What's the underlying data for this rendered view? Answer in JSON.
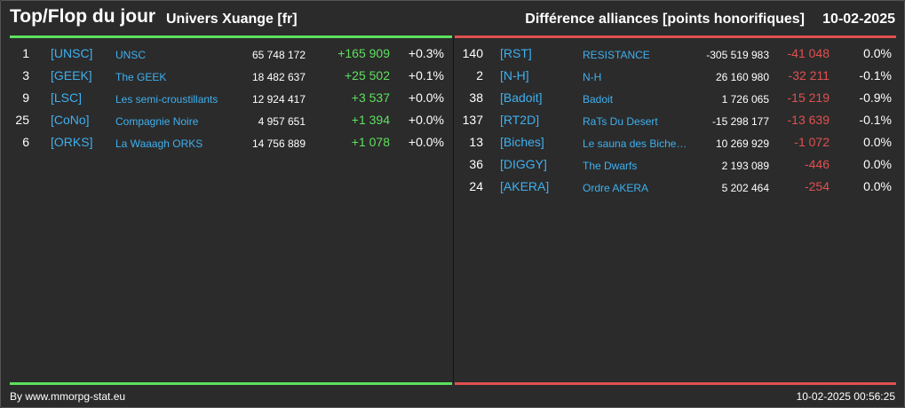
{
  "header": {
    "title": "Top/Flop du jour",
    "universe": "Univers Xuange [fr]",
    "difference": "Différence alliances [points honorifiques]",
    "date": "10-02-2025"
  },
  "colors": {
    "top": "#5ee05e",
    "flop": "#e05050",
    "link": "#3fb0ef",
    "background": "#2b2b2b"
  },
  "top": [
    {
      "rank": "1",
      "tag": "[UNSC]",
      "name": "UNSC",
      "points": "65 748 172",
      "delta": "+165 909",
      "pct": "+0.3%"
    },
    {
      "rank": "3",
      "tag": "[GEEK]",
      "name": "The GEEK",
      "points": "18 482 637",
      "delta": "+25 502",
      "pct": "+0.1%"
    },
    {
      "rank": "9",
      "tag": "[LSC]",
      "name": "Les semi-croustillants",
      "points": "12 924 417",
      "delta": "+3 537",
      "pct": "+0.0%"
    },
    {
      "rank": "25",
      "tag": "[CoNo]",
      "name": "Compagnie Noire",
      "points": "4 957 651",
      "delta": "+1 394",
      "pct": "+0.0%"
    },
    {
      "rank": "6",
      "tag": "[ORKS]",
      "name": "La Waaagh ORKS",
      "points": "14 756 889",
      "delta": "+1 078",
      "pct": "+0.0%"
    }
  ],
  "flop": [
    {
      "rank": "140",
      "tag": "[RST]",
      "name": "RESISTANCE",
      "points": "-305 519 983",
      "delta": "-41 048",
      "pct": "0.0%"
    },
    {
      "rank": "2",
      "tag": "[N-H]",
      "name": "N-H",
      "points": "26 160 980",
      "delta": "-32 211",
      "pct": "-0.1%"
    },
    {
      "rank": "38",
      "tag": "[Badoit]",
      "name": "Badoit",
      "points": "1 726 065",
      "delta": "-15 219",
      "pct": "-0.9%"
    },
    {
      "rank": "137",
      "tag": "[RT2D]",
      "name": "RaTs Du Desert",
      "points": "-15 298 177",
      "delta": "-13 639",
      "pct": "-0.1%"
    },
    {
      "rank": "13",
      "tag": "[Biches]",
      "name": "Le sauna des Biche…",
      "points": "10 269 929",
      "delta": "-1 072",
      "pct": "0.0%"
    },
    {
      "rank": "36",
      "tag": "[DIGGY]",
      "name": "The Dwarfs",
      "points": "2 193 089",
      "delta": "-446",
      "pct": "0.0%"
    },
    {
      "rank": "24",
      "tag": "[AKERA]",
      "name": "Ordre AKERA",
      "points": "5 202 464",
      "delta": "-254",
      "pct": "0.0%"
    }
  ],
  "footer": {
    "source": "By www.mmorpg-stat.eu",
    "timestamp": "10-02-2025 00:56:25"
  }
}
